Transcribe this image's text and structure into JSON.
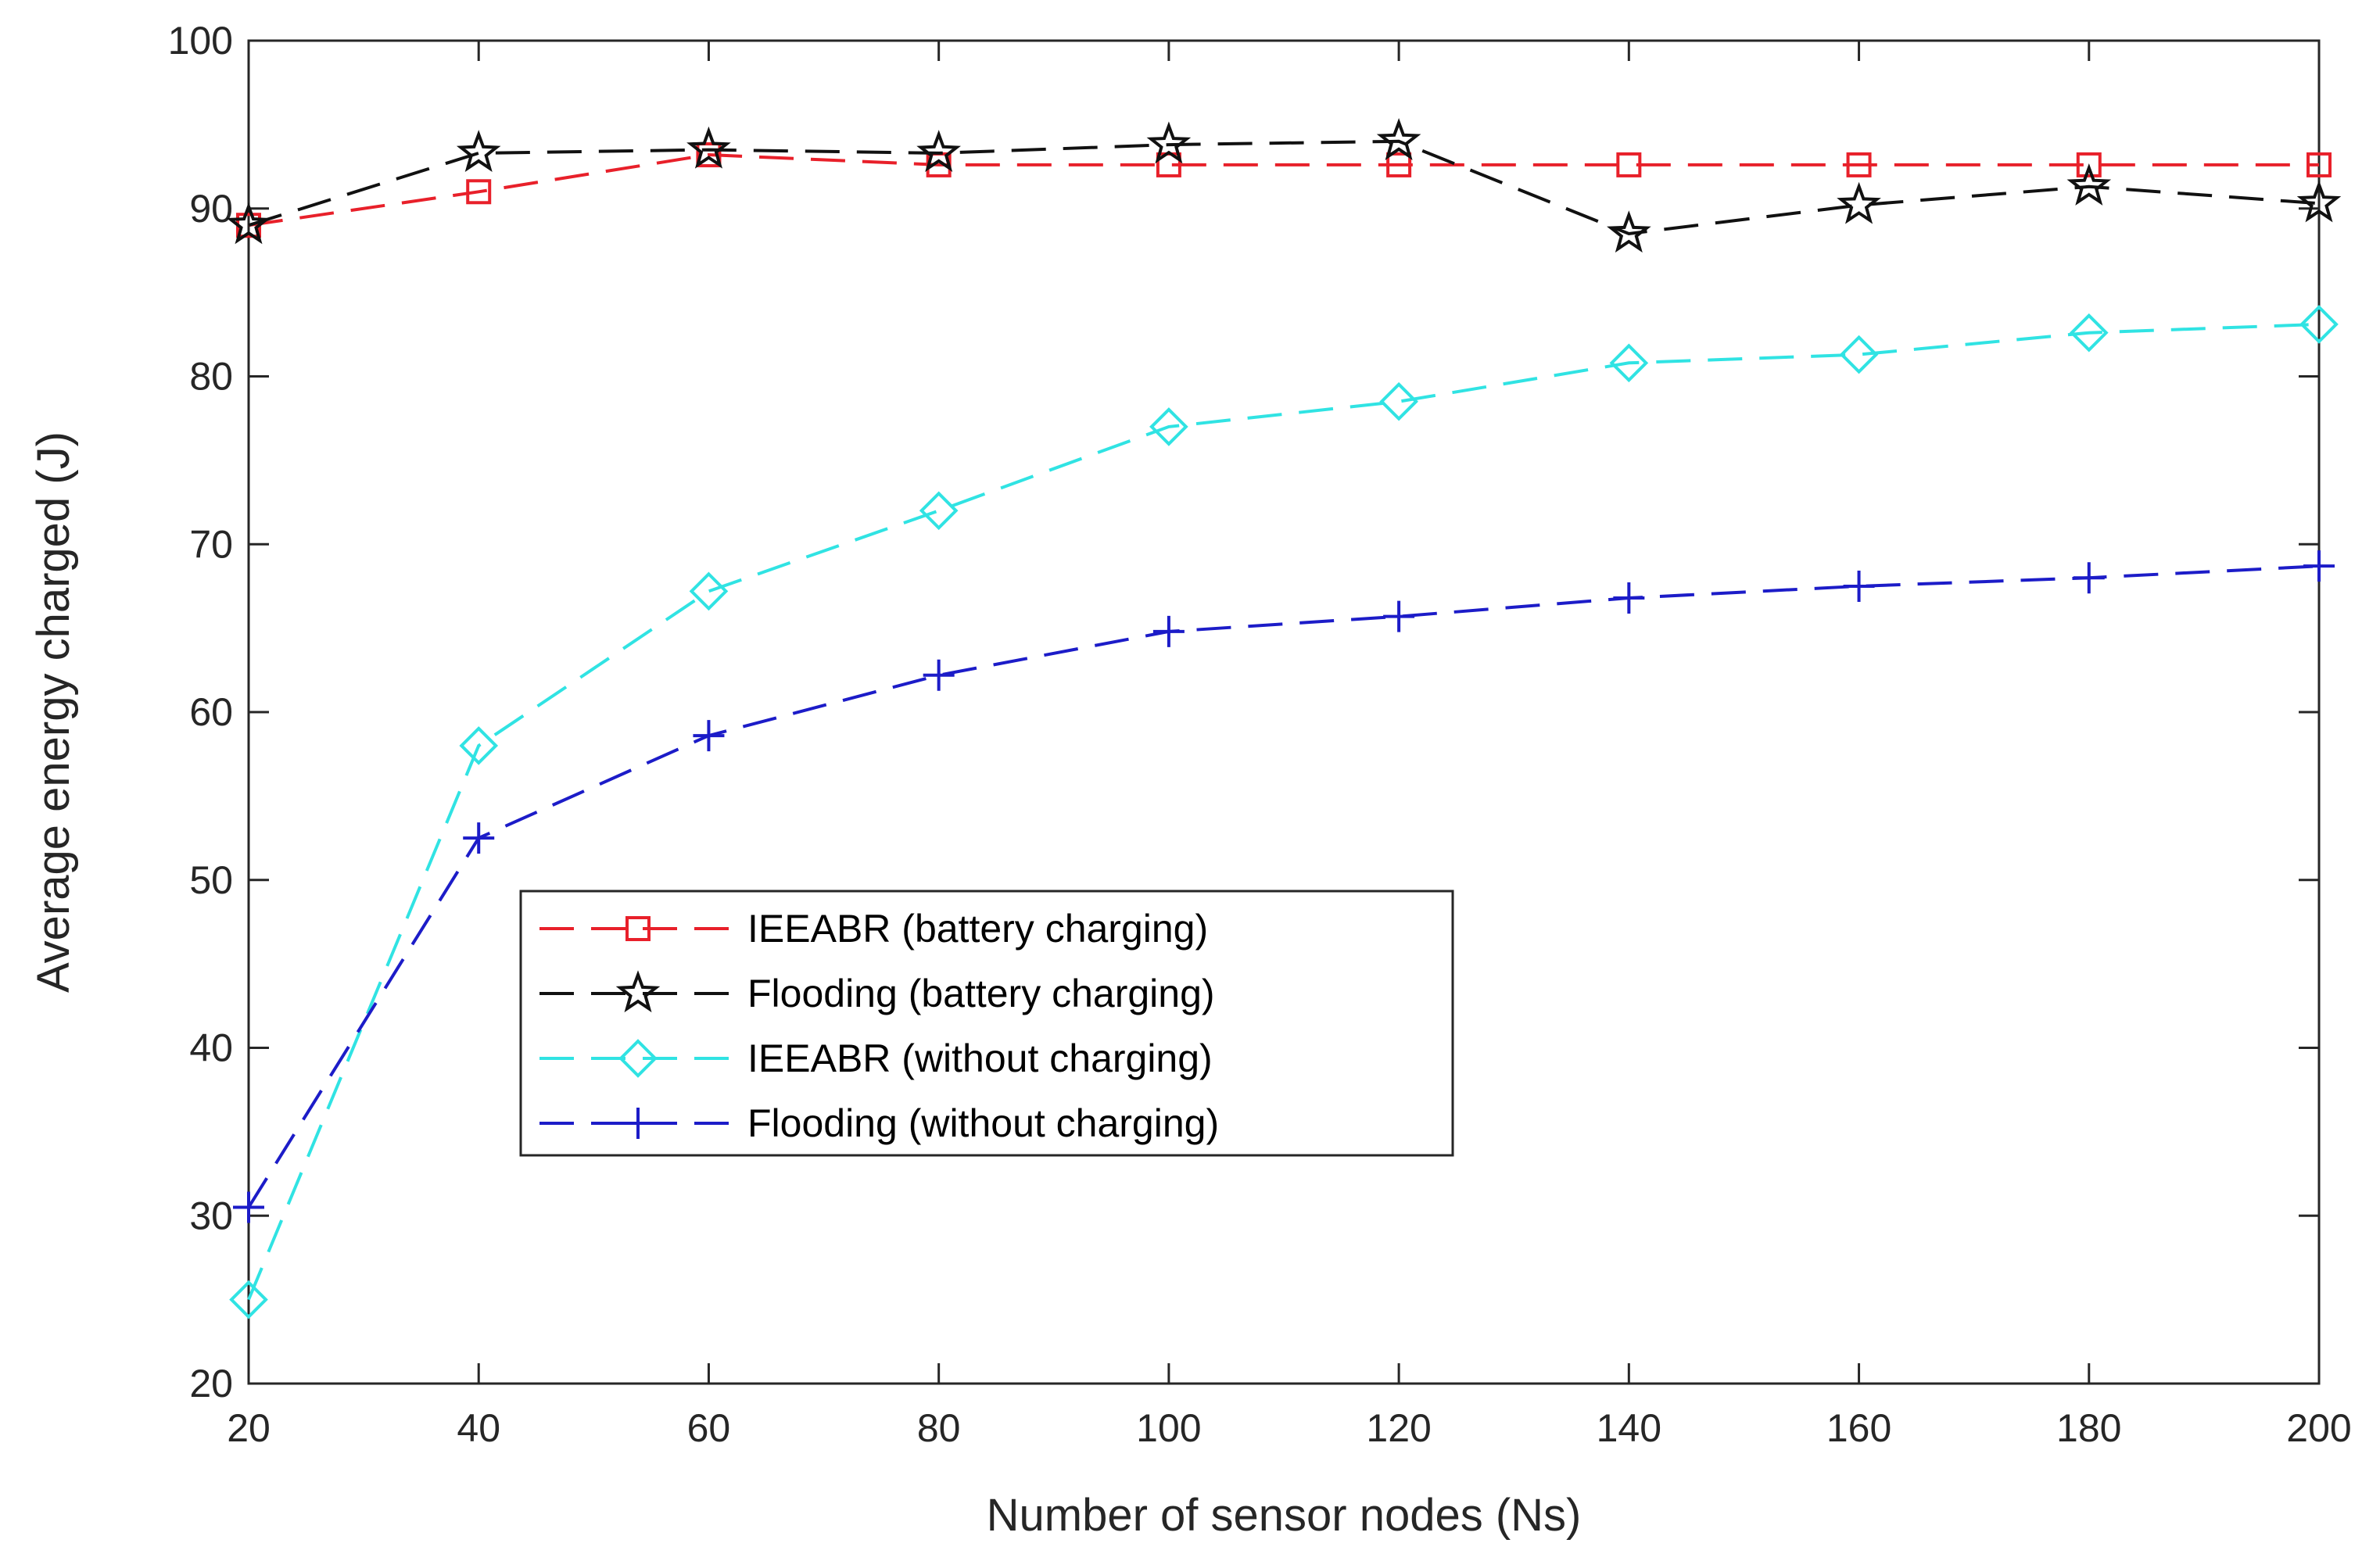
{
  "chart_data": {
    "type": "line",
    "title": "",
    "xlabel": "Number of sensor nodes (Ns)",
    "ylabel": "Average energy charged (J)",
    "xlim": [
      20,
      200
    ],
    "ylim": [
      20,
      100
    ],
    "xticks": [
      20,
      40,
      60,
      80,
      100,
      120,
      140,
      160,
      180,
      200
    ],
    "yticks": [
      20,
      30,
      40,
      50,
      60,
      70,
      80,
      90,
      100
    ],
    "x": [
      20,
      40,
      60,
      80,
      100,
      120,
      140,
      160,
      180,
      200
    ],
    "grid": false,
    "legend_position": "center-left",
    "series": [
      {
        "name": "IEEABR (battery charging)",
        "color": "#e8202a",
        "marker": "square",
        "line_style": "dashed",
        "values": [
          89,
          91,
          93.2,
          92.6,
          92.6,
          92.6,
          92.6,
          92.6,
          92.6,
          92.6
        ]
      },
      {
        "name": "Flooding (battery charging)",
        "color": "#111111",
        "marker": "star",
        "line_style": "dashed",
        "values": [
          89,
          93.3,
          93.5,
          93.3,
          93.8,
          94,
          88.5,
          90.2,
          91.3,
          90.3
        ]
      },
      {
        "name": "IEEABR (without charging)",
        "color": "#30e3e3",
        "marker": "diamond",
        "line_style": "dashed",
        "values": [
          25,
          58,
          67.2,
          72,
          77,
          78.5,
          80.8,
          81.3,
          82.6,
          83.1
        ]
      },
      {
        "name": "Flooding (without charging)",
        "color": "#1c1cc8",
        "marker": "plus",
        "line_style": "dashed",
        "values": [
          30.5,
          52.5,
          58.6,
          62.2,
          64.8,
          65.7,
          66.8,
          67.5,
          68,
          68.7
        ]
      }
    ]
  }
}
